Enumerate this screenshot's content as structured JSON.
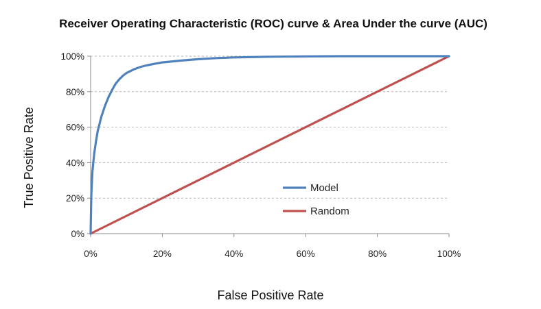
{
  "chart_data": {
    "type": "line",
    "title": "Receiver Operating Characteristic (ROC) curve & Area Under the curve (AUC)",
    "xlabel": "False Positive Rate",
    "ylabel": "True Positive Rate",
    "xlim": [
      0,
      100
    ],
    "ylim": [
      0,
      100
    ],
    "x_ticks": [
      0,
      20,
      40,
      60,
      80,
      100
    ],
    "y_ticks": [
      0,
      20,
      40,
      60,
      80,
      100
    ],
    "x_tick_labels": [
      "0%",
      "20%",
      "40%",
      "60%",
      "80%",
      "100%"
    ],
    "y_tick_labels": [
      "0%",
      "20%",
      "40%",
      "60%",
      "80%",
      "100%"
    ],
    "grid": "horizontal dashed",
    "legend_position": "center-right",
    "series": [
      {
        "name": "Model",
        "color": "#4f81bd",
        "points": [
          [
            0,
            0
          ],
          [
            0.2,
            22
          ],
          [
            0.5,
            35
          ],
          [
            1,
            45
          ],
          [
            1.5,
            52
          ],
          [
            2,
            58
          ],
          [
            3,
            66
          ],
          [
            4,
            72
          ],
          [
            5,
            77
          ],
          [
            6,
            81
          ],
          [
            7,
            84.5
          ],
          [
            8,
            87
          ],
          [
            9,
            89
          ],
          [
            10,
            90.5
          ],
          [
            12,
            92.5
          ],
          [
            14,
            94
          ],
          [
            16,
            95
          ],
          [
            18,
            95.8
          ],
          [
            20,
            96.5
          ],
          [
            25,
            97.5
          ],
          [
            30,
            98.3
          ],
          [
            35,
            98.9
          ],
          [
            40,
            99.3
          ],
          [
            50,
            99.7
          ],
          [
            60,
            99.9
          ],
          [
            70,
            100
          ],
          [
            80,
            100
          ],
          [
            90,
            100
          ],
          [
            100,
            100
          ]
        ]
      },
      {
        "name": "Random",
        "color": "#c0504d",
        "points": [
          [
            0,
            0
          ],
          [
            100,
            100
          ]
        ]
      }
    ]
  }
}
